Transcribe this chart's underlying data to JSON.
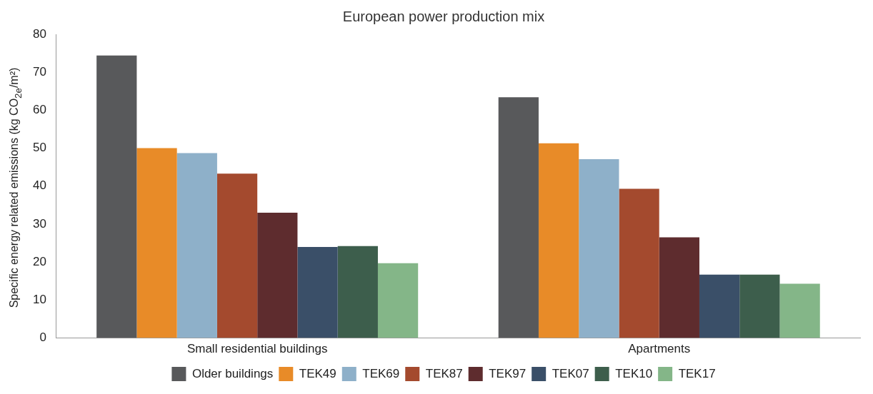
{
  "chart_data": {
    "type": "bar",
    "title": "European power production mix",
    "ylabel": "Specific energy related emissions (kg CO$_{2e}$/m²)",
    "categories": [
      "Small residential buildings",
      "Apartments"
    ],
    "ylim": [
      0,
      80
    ],
    "yticks": [
      0,
      10,
      20,
      30,
      40,
      50,
      60,
      70,
      80
    ],
    "grid": false,
    "legend": "bottom",
    "series": [
      {
        "name": "Older buildings",
        "color": "#58595b",
        "values": [
          74.4,
          63.4
        ]
      },
      {
        "name": "TEK49",
        "color": "#e88b28",
        "values": [
          50,
          51.3
        ]
      },
      {
        "name": "TEK69",
        "color": "#8eb0c9",
        "values": [
          48.7,
          47.1
        ]
      },
      {
        "name": "TEK87",
        "color": "#a44a2e",
        "values": [
          43.3,
          39.3
        ]
      },
      {
        "name": "TEK97",
        "color": "#5e2c2e",
        "values": [
          33,
          26.5
        ]
      },
      {
        "name": "TEK07",
        "color": "#3a4f68",
        "values": [
          24,
          16.7
        ]
      },
      {
        "name": "TEK10",
        "color": "#3d5e4c",
        "values": [
          24.2,
          16.7
        ]
      },
      {
        "name": "TEK17",
        "color": "#84b688",
        "values": [
          19.7,
          14.3
        ]
      }
    ]
  }
}
